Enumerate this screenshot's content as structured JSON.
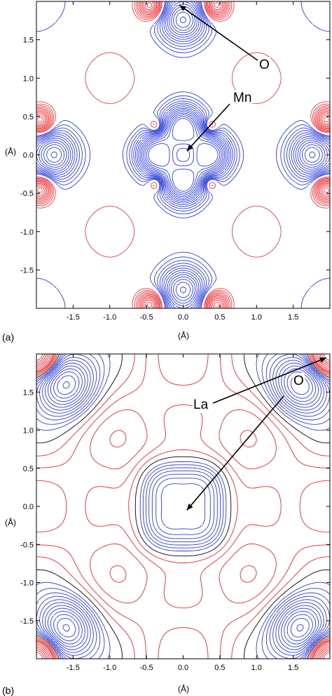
{
  "chart_data": [
    {
      "type": "contour",
      "panel_label": "(a)",
      "xlabel": "(Å)",
      "ylabel": "(Å)",
      "xlim": [
        -2.0,
        2.0
      ],
      "ylim": [
        -2.0,
        2.0
      ],
      "xticks": [
        -1.5,
        -1.0,
        -0.5,
        0.0,
        0.5,
        1.0,
        1.5
      ],
      "yticks": [
        -1.5,
        -1.0,
        -0.5,
        0.0,
        0.5,
        1.0,
        1.5
      ],
      "xtick_labels": [
        "-1.5",
        "-1.0",
        "-0.5",
        "0.0",
        "0.5",
        "1.0",
        "1.5"
      ],
      "ytick_labels": [
        "-1.5",
        "-1.0",
        "-0.5",
        "0.0",
        "0.5",
        "1.0",
        "1.5"
      ],
      "contour_colors": {
        "positive": "#e8262b",
        "negative": "#2b3bd6"
      },
      "annotations": [
        {
          "text": "O",
          "target": [
            -0.05,
            1.95
          ]
        },
        {
          "text": "Mn",
          "target": [
            0.05,
            0.05
          ]
        }
      ]
    },
    {
      "type": "contour",
      "panel_label": "(b)",
      "xlabel": "(Å)",
      "ylabel": "(Å)",
      "xlim": [
        -2.0,
        2.0
      ],
      "ylim": [
        -2.0,
        2.0
      ],
      "xticks": [
        -1.5,
        -1.0,
        -0.5,
        0.0,
        0.5,
        1.0,
        1.5
      ],
      "yticks": [
        -1.5,
        -1.0,
        -0.5,
        0.0,
        0.5,
        1.0,
        1.5
      ],
      "xtick_labels": [
        "-1.5",
        "-1.0",
        "-0.5",
        "0.0",
        "0.5",
        "1.0",
        "1.5"
      ],
      "ytick_labels": [
        "-1.5",
        "-1.0",
        "-0.5",
        "0.0",
        "0.5",
        "1.0",
        "1.5"
      ],
      "contour_colors": {
        "positive": "#e8262b",
        "negative": "#2b3bd6",
        "zero": "#000000"
      },
      "annotations": [
        {
          "text": "La",
          "target": [
            1.95,
            1.95
          ]
        },
        {
          "text": "O",
          "target": [
            0.05,
            -0.05
          ]
        }
      ]
    }
  ]
}
